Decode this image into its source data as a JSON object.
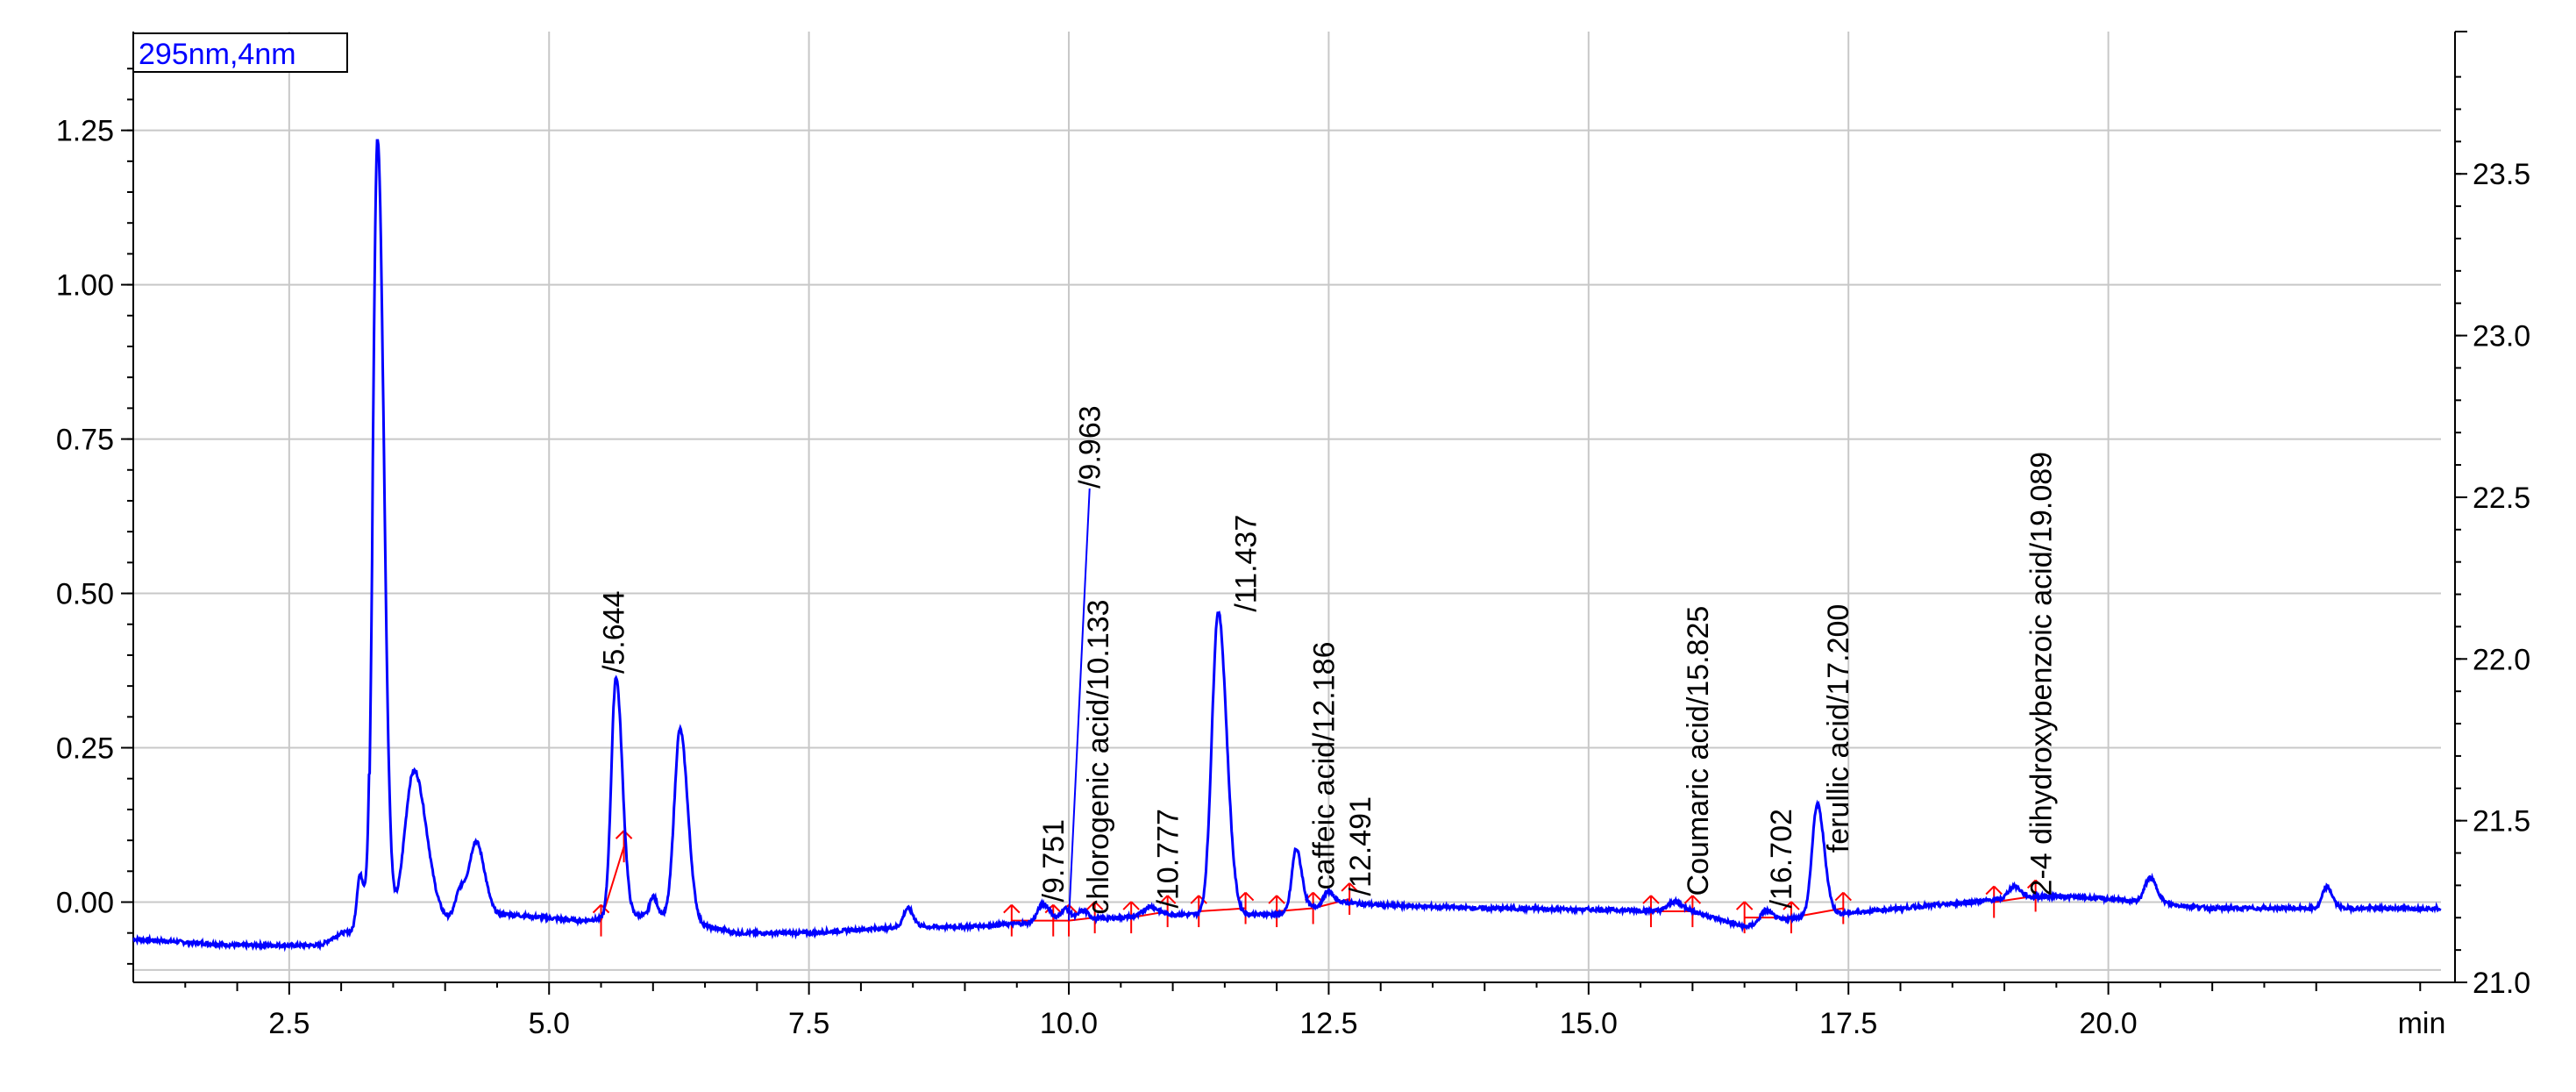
{
  "chart_data": {
    "type": "line",
    "detector_label": "295nm,4nm",
    "xunit": "min",
    "xlim": [
      1.0,
      23.2
    ],
    "ylim": [
      -0.13,
      1.41
    ],
    "y2lim": [
      21.0,
      23.94
    ],
    "x_ticks": [
      {
        "v": 2.5,
        "label": "2.5"
      },
      {
        "v": 5.0,
        "label": "5.0"
      },
      {
        "v": 7.5,
        "label": "7.5"
      },
      {
        "v": 10.0,
        "label": "10.0"
      },
      {
        "v": 12.5,
        "label": "12.5"
      },
      {
        "v": 15.0,
        "label": "15.0"
      },
      {
        "v": 17.5,
        "label": "17.5"
      },
      {
        "v": 20.0,
        "label": "20.0"
      }
    ],
    "y_ticks": [
      {
        "v": 0.0,
        "label": "0.00"
      },
      {
        "v": 0.25,
        "label": "0.25"
      },
      {
        "v": 0.5,
        "label": "0.50"
      },
      {
        "v": 0.75,
        "label": "0.75"
      },
      {
        "v": 1.0,
        "label": "1.00"
      },
      {
        "v": 1.25,
        "label": "1.25"
      }
    ],
    "y2_ticks": [
      {
        "v": 21.0,
        "label": "21.0"
      },
      {
        "v": 21.5,
        "label": "21.5"
      },
      {
        "v": 22.0,
        "label": "22.0"
      },
      {
        "v": 22.5,
        "label": "22.5"
      },
      {
        "v": 23.0,
        "label": "23.0"
      },
      {
        "v": 23.5,
        "label": "23.5"
      }
    ],
    "grid": true,
    "colors": {
      "trace": "#0000ff",
      "integration": "#ff0000",
      "grid": "#c8c8c8",
      "axis": "#000000"
    },
    "baseline_points": [
      [
        1.0,
        -0.06
      ],
      [
        2.0,
        -0.07
      ],
      [
        2.8,
        -0.07
      ],
      [
        3.0,
        -0.05
      ],
      [
        4.6,
        -0.02
      ],
      [
        5.3,
        -0.03
      ],
      [
        6.0,
        -0.02
      ],
      [
        6.8,
        -0.05
      ],
      [
        7.5,
        -0.05
      ],
      [
        8.4,
        -0.04
      ],
      [
        9.0,
        -0.04
      ],
      [
        10.0,
        -0.03
      ],
      [
        11.0,
        -0.02
      ],
      [
        12.0,
        -0.02
      ],
      [
        12.6,
        0.0
      ],
      [
        13.0,
        -0.005
      ],
      [
        14.0,
        -0.01
      ],
      [
        15.0,
        -0.012
      ],
      [
        16.0,
        -0.015
      ],
      [
        16.5,
        -0.04
      ],
      [
        17.0,
        -0.025
      ],
      [
        18.0,
        -0.01
      ],
      [
        19.0,
        0.005
      ],
      [
        19.5,
        0.01
      ],
      [
        20.0,
        0.005
      ],
      [
        21.0,
        -0.01
      ],
      [
        22.0,
        -0.01
      ],
      [
        23.2,
        -0.01
      ]
    ],
    "peaks": [
      {
        "rt": 3.18,
        "height": 0.09,
        "width": 0.03
      },
      {
        "rt": 3.35,
        "height": 1.28,
        "width": 0.045
      },
      {
        "rt": 3.7,
        "height": 0.25,
        "width": 0.09
      },
      {
        "rt": 4.15,
        "height": 0.05,
        "width": 0.05
      },
      {
        "rt": 4.3,
        "height": 0.12,
        "width": 0.06
      },
      {
        "rt": 5.644,
        "height": 0.39,
        "width": 0.045
      },
      {
        "rt": 6.0,
        "height": 0.03,
        "width": 0.03
      },
      {
        "rt": 6.26,
        "height": 0.31,
        "width": 0.055
      },
      {
        "rt": 8.45,
        "height": 0.03,
        "width": 0.04
      },
      {
        "rt": 9.751,
        "height": 0.03,
        "width": 0.05
      },
      {
        "rt": 9.963,
        "height": 0.02,
        "width": 0.04
      },
      {
        "rt": 10.133,
        "height": 0.015,
        "width": 0.04
      },
      {
        "rt": 10.777,
        "height": 0.015,
        "width": 0.06
      },
      {
        "rt": 11.437,
        "height": 0.49,
        "width": 0.06
      },
      {
        "rt": 12.186,
        "height": 0.1,
        "width": 0.04
      },
      {
        "rt": 12.491,
        "height": 0.02,
        "width": 0.04
      },
      {
        "rt": 15.825,
        "height": 0.015,
        "width": 0.06
      },
      {
        "rt": 16.702,
        "height": 0.02,
        "width": 0.05
      },
      {
        "rt": 17.2,
        "height": 0.18,
        "width": 0.05
      },
      {
        "rt": 19.089,
        "height": 0.02,
        "width": 0.05
      },
      {
        "rt": 20.4,
        "height": 0.04,
        "width": 0.05
      },
      {
        "rt": 22.1,
        "height": 0.035,
        "width": 0.04
      }
    ],
    "integration_segments": [
      [
        [
          5.5,
          -0.03
        ],
        [
          5.72,
          0.09
        ]
      ],
      [
        [
          9.45,
          -0.03
        ],
        [
          9.85,
          -0.03
        ]
      ],
      [
        [
          9.85,
          -0.03
        ],
        [
          10.0,
          -0.03
        ]
      ],
      [
        [
          10.0,
          -0.03
        ],
        [
          10.25,
          -0.025
        ]
      ],
      [
        [
          10.6,
          -0.025
        ],
        [
          10.95,
          -0.015
        ]
      ],
      [
        [
          11.25,
          -0.015
        ],
        [
          11.7,
          -0.01
        ]
      ],
      [
        [
          12.0,
          -0.015
        ],
        [
          12.35,
          -0.01
        ]
      ],
      [
        [
          12.35,
          -0.01
        ],
        [
          12.7,
          0.005
        ]
      ],
      [
        [
          15.6,
          -0.015
        ],
        [
          16.0,
          -0.015
        ]
      ],
      [
        [
          16.5,
          -0.025
        ],
        [
          16.95,
          -0.025
        ]
      ],
      [
        [
          16.95,
          -0.025
        ],
        [
          17.45,
          -0.01
        ]
      ],
      [
        [
          18.9,
          0.0
        ],
        [
          19.3,
          0.01
        ]
      ]
    ],
    "integration_markers": [
      [
        5.5,
        -0.03
      ],
      [
        5.72,
        0.09
      ],
      [
        9.45,
        -0.03
      ],
      [
        9.85,
        -0.03
      ],
      [
        10.0,
        -0.03
      ],
      [
        10.25,
        -0.025
      ],
      [
        10.6,
        -0.025
      ],
      [
        10.95,
        -0.015
      ],
      [
        11.25,
        -0.015
      ],
      [
        11.7,
        -0.01
      ],
      [
        12.0,
        -0.015
      ],
      [
        12.35,
        -0.01
      ],
      [
        12.7,
        0.005
      ],
      [
        15.6,
        -0.015
      ],
      [
        16.0,
        -0.015
      ],
      [
        16.5,
        -0.025
      ],
      [
        16.95,
        -0.025
      ],
      [
        17.45,
        -0.01
      ],
      [
        18.9,
        0.0
      ],
      [
        19.3,
        0.01
      ]
    ],
    "peak_labels": [
      {
        "text": "/5.644",
        "x": 5.72,
        "y": 0.37
      },
      {
        "text": "/9.751",
        "x": 9.95,
        "y": 0.0
      },
      {
        "text": "/9.963",
        "x": 10.3,
        "y": 0.67
      },
      {
        "text": "chlorogenic acid/10.133",
        "x": 10.38,
        "y": -0.02
      },
      {
        "text": "/10.777",
        "x": 11.05,
        "y": -0.01
      },
      {
        "text": "/11.437",
        "x": 11.8,
        "y": 0.47
      },
      {
        "text": "caffeic acid/12.186",
        "x": 12.55,
        "y": 0.02
      },
      {
        "text": "/12.491",
        "x": 12.9,
        "y": 0.01
      },
      {
        "text": "Coumaric acid/15.825",
        "x": 16.15,
        "y": 0.01
      },
      {
        "text": "/16.702",
        "x": 16.95,
        "y": -0.01
      },
      {
        "text": "ferullic acid/17.200",
        "x": 17.5,
        "y": 0.08
      },
      {
        "text": "2-4 dihydroxybenzoic acid/19.089",
        "x": 19.45,
        "y": 0.01
      }
    ],
    "leader_lines": [
      [
        [
          10.0,
          -0.03
        ],
        [
          10.2,
          0.67
        ]
      ]
    ]
  }
}
